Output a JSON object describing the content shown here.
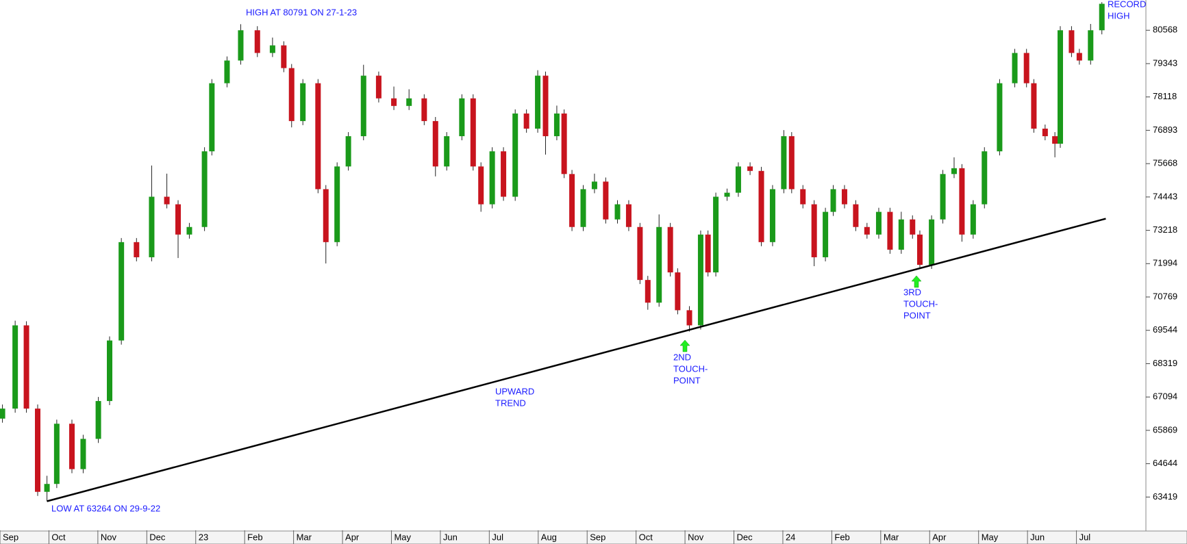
{
  "chart_data": {
    "type": "candlestick",
    "up_color": "#1a9a1a",
    "down_color": "#c8141e",
    "line_color": "#000000",
    "text_color": "#1a1aff",
    "xlim": [
      0,
      23.42
    ],
    "ylim": [
      62196,
      81680
    ],
    "xticks": [
      {
        "value": 0,
        "label": "Sep"
      },
      {
        "value": 1,
        "label": "Oct"
      },
      {
        "value": 2,
        "label": "Nov"
      },
      {
        "value": 3,
        "label": "Dec"
      },
      {
        "value": 4,
        "label": "23"
      },
      {
        "value": 5,
        "label": "Feb"
      },
      {
        "value": 6,
        "label": "Mar"
      },
      {
        "value": 7,
        "label": "Apr"
      },
      {
        "value": 8,
        "label": "May"
      },
      {
        "value": 9,
        "label": "Jun"
      },
      {
        "value": 10,
        "label": "Jul"
      },
      {
        "value": 11,
        "label": "Aug"
      },
      {
        "value": 12,
        "label": "Sep"
      },
      {
        "value": 13,
        "label": "Oct"
      },
      {
        "value": 14,
        "label": "Nov"
      },
      {
        "value": 15,
        "label": "Dec"
      },
      {
        "value": 16,
        "label": "24"
      },
      {
        "value": 17,
        "label": "Feb"
      },
      {
        "value": 18,
        "label": "Mar"
      },
      {
        "value": 19,
        "label": "Apr"
      },
      {
        "value": 20,
        "label": "May"
      },
      {
        "value": 21,
        "label": "Jun"
      },
      {
        "value": 22,
        "label": "Jul"
      }
    ],
    "yticks": [
      63419,
      64644,
      65869,
      67094,
      68319,
      69544,
      70769,
      71994,
      73218,
      74443,
      75668,
      76893,
      78118,
      79343,
      80568
    ],
    "candles": [
      [
        0.05,
        66300,
        66818,
        66150,
        66668
      ],
      [
        0.31,
        66668,
        69900,
        66518,
        69726
      ],
      [
        0.54,
        69726,
        69876,
        66518,
        66668
      ],
      [
        0.77,
        66668,
        66818,
        63460,
        63610
      ],
      [
        0.96,
        63610,
        64200,
        63264,
        63900
      ],
      [
        1.16,
        63900,
        66262,
        63750,
        66112
      ],
      [
        1.47,
        66112,
        66262,
        64294,
        64444
      ],
      [
        1.7,
        64444,
        65706,
        64294,
        65556
      ],
      [
        2.01,
        65556,
        67096,
        65406,
        66946
      ],
      [
        2.24,
        66946,
        69320,
        66796,
        69170
      ],
      [
        2.48,
        69170,
        72934,
        69020,
        72784
      ],
      [
        2.79,
        72784,
        72934,
        72078,
        72228
      ],
      [
        3.1,
        72228,
        75600,
        72078,
        74452
      ],
      [
        3.41,
        74452,
        75300,
        74024,
        74174
      ],
      [
        3.64,
        74174,
        74324,
        72200,
        73062
      ],
      [
        3.87,
        73062,
        73490,
        72912,
        73340
      ],
      [
        4.18,
        73340,
        76270,
        73190,
        76120
      ],
      [
        4.33,
        76120,
        78772,
        75970,
        78622
      ],
      [
        4.64,
        78622,
        79606,
        78472,
        79456
      ],
      [
        4.92,
        79456,
        80791,
        79306,
        80568
      ],
      [
        5.26,
        80568,
        80718,
        79584,
        79734
      ],
      [
        5.57,
        79734,
        80300,
        79584,
        80012
      ],
      [
        5.8,
        80012,
        80162,
        79028,
        79178
      ],
      [
        5.96,
        79178,
        79328,
        77000,
        77232
      ],
      [
        6.19,
        77232,
        78772,
        77082,
        78622
      ],
      [
        6.5,
        78622,
        78772,
        74580,
        74730
      ],
      [
        6.66,
        74730,
        74880,
        72000,
        72784
      ],
      [
        6.89,
        72784,
        75714,
        72634,
        75564
      ],
      [
        7.12,
        75564,
        76826,
        75414,
        76676
      ],
      [
        7.43,
        76676,
        79300,
        76526,
        78900
      ],
      [
        7.74,
        78900,
        79050,
        77916,
        78066
      ],
      [
        8.05,
        78066,
        78500,
        77638,
        77788
      ],
      [
        8.36,
        77788,
        78400,
        77638,
        78066
      ],
      [
        8.67,
        78066,
        78216,
        77082,
        77232
      ],
      [
        8.9,
        77232,
        77382,
        75200,
        75564
      ],
      [
        9.13,
        75564,
        76826,
        75414,
        76676
      ],
      [
        9.44,
        76676,
        78216,
        76526,
        78066
      ],
      [
        9.67,
        78066,
        78216,
        75414,
        75564
      ],
      [
        9.83,
        75564,
        75714,
        73900,
        74174
      ],
      [
        10.06,
        74174,
        76270,
        74024,
        76120
      ],
      [
        10.29,
        76120,
        76270,
        74302,
        74452
      ],
      [
        10.53,
        74452,
        77660,
        74302,
        77510
      ],
      [
        10.76,
        77510,
        77660,
        76804,
        76954
      ],
      [
        10.99,
        76954,
        79100,
        76804,
        78900
      ],
      [
        11.15,
        78900,
        79050,
        76000,
        76676
      ],
      [
        11.38,
        76676,
        77800,
        76526,
        77510
      ],
      [
        11.53,
        77510,
        77660,
        75136,
        75286
      ],
      [
        11.69,
        75286,
        75436,
        73190,
        73340
      ],
      [
        11.92,
        73340,
        74880,
        73190,
        74730
      ],
      [
        12.15,
        74730,
        75300,
        74580,
        75008
      ],
      [
        12.38,
        75008,
        75158,
        73468,
        73618
      ],
      [
        12.62,
        73618,
        74324,
        73468,
        74174
      ],
      [
        12.85,
        74174,
        74324,
        73190,
        73340
      ],
      [
        13.08,
        73340,
        73490,
        71244,
        71394
      ],
      [
        13.24,
        71394,
        71544,
        70300,
        70560
      ],
      [
        13.47,
        70560,
        73800,
        70410,
        73340
      ],
      [
        13.7,
        73340,
        73490,
        71522,
        71672
      ],
      [
        13.85,
        71672,
        71822,
        70132,
        70282
      ],
      [
        14.09,
        70282,
        70432,
        69500,
        69726
      ],
      [
        14.32,
        69726,
        73212,
        69576,
        73062
      ],
      [
        14.47,
        73062,
        73212,
        71522,
        71672
      ],
      [
        14.63,
        71672,
        74602,
        71522,
        74452
      ],
      [
        14.86,
        74452,
        74750,
        74302,
        74600
      ],
      [
        15.09,
        74600,
        75714,
        74450,
        75564
      ],
      [
        15.33,
        75564,
        75714,
        75250,
        75400
      ],
      [
        15.56,
        75400,
        75550,
        72634,
        72784
      ],
      [
        15.79,
        72784,
        74880,
        72634,
        74730
      ],
      [
        16.02,
        74730,
        76900,
        74580,
        76676
      ],
      [
        16.18,
        76676,
        76826,
        74580,
        74730
      ],
      [
        16.41,
        74730,
        74880,
        74024,
        74174
      ],
      [
        16.64,
        74174,
        74324,
        71900,
        72228
      ],
      [
        16.87,
        72228,
        74046,
        72078,
        73896
      ],
      [
        17.03,
        73896,
        74880,
        73746,
        74730
      ],
      [
        17.26,
        74730,
        74880,
        74024,
        74174
      ],
      [
        17.49,
        74174,
        74324,
        73190,
        73340
      ],
      [
        17.72,
        73340,
        73490,
        72912,
        73062
      ],
      [
        17.96,
        73062,
        74046,
        72912,
        73896
      ],
      [
        18.19,
        73896,
        74046,
        72356,
        72506
      ],
      [
        18.42,
        72506,
        73900,
        72356,
        73618
      ],
      [
        18.65,
        73618,
        73768,
        72912,
        73062
      ],
      [
        18.8,
        73062,
        73212,
        71800,
        71950
      ],
      [
        19.04,
        71950,
        73768,
        71800,
        73618
      ],
      [
        19.27,
        73618,
        75436,
        73468,
        75286
      ],
      [
        19.5,
        75286,
        75900,
        75136,
        75500
      ],
      [
        19.66,
        75500,
        75650,
        72800,
        73062
      ],
      [
        19.89,
        73062,
        74324,
        72912,
        74174
      ],
      [
        20.12,
        74174,
        76270,
        74024,
        76120
      ],
      [
        20.43,
        76120,
        78772,
        75970,
        78622
      ],
      [
        20.74,
        78622,
        79884,
        78472,
        79734
      ],
      [
        20.98,
        79734,
        79884,
        78472,
        78622
      ],
      [
        21.13,
        78622,
        78772,
        76804,
        76954
      ],
      [
        21.36,
        76954,
        77104,
        76526,
        76676
      ],
      [
        21.56,
        76676,
        76826,
        75900,
        76400
      ],
      [
        21.67,
        76400,
        80718,
        76250,
        80568
      ],
      [
        21.9,
        80568,
        80718,
        79584,
        79734
      ],
      [
        22.06,
        79734,
        79884,
        79306,
        79456
      ],
      [
        22.29,
        79456,
        80800,
        79306,
        80568
      ],
      [
        22.52,
        80568,
        81600,
        80418,
        81541
      ]
    ],
    "trendline": {
      "x": [
        0.96,
        22.6
      ],
      "y": [
        63264,
        73646
      ]
    },
    "annotations": [
      {
        "lines": [
          "HIGH AT 80791 ON 27-1-23"
        ]
      },
      {
        "lines": [
          "LOW AT 63264 ON 29-9-22"
        ]
      },
      {
        "lines": [
          "UPWARD",
          "TREND"
        ]
      },
      {
        "lines": [
          "2ND",
          "TOUCH-",
          "POINT"
        ]
      },
      {
        "lines": [
          "3RD",
          "TOUCH-",
          "POINT"
        ]
      },
      {
        "lines": [
          "RECORD",
          "HIGH"
        ]
      }
    ]
  }
}
